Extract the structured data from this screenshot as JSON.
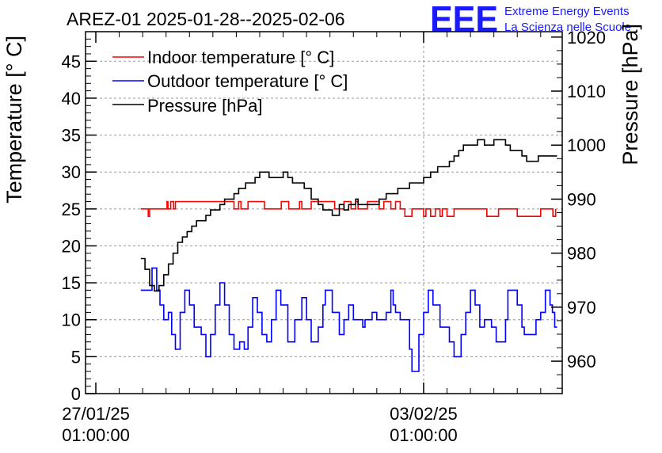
{
  "chart_data": {
    "type": "line",
    "title": "AREZ-01 2025-01-28--2025-02-06",
    "logo": {
      "mark": "EEE",
      "line1": "Extreme Energy Events",
      "line2": "La Scienza nelle Scuole",
      "color": "#1a1aff"
    },
    "ylabel": "Temperature [° C]",
    "y2label": "Pressure [hPa]",
    "ylim": [
      0,
      49
    ],
    "y2lim": [
      954,
      1021
    ],
    "yticks": [
      "0",
      "5",
      "10",
      "15",
      "20",
      "25",
      "30",
      "35",
      "40",
      "45"
    ],
    "y2ticks": [
      "960",
      "970",
      "980",
      "990",
      "1000",
      "1010",
      "1020"
    ],
    "xlim": [
      -0.22,
      9.96
    ],
    "xticks": [
      {
        "x": 0,
        "line1": "27/01/25",
        "line2": "01:00:00"
      },
      {
        "x": 7,
        "line1": "03/02/25",
        "line2": "01:00:00"
      }
    ],
    "grid": true,
    "legend_position": "top-left",
    "x_unit": "days since 27/01/25 01:00:00",
    "series": [
      {
        "name": "Indoor temperature [° C]",
        "axis": "left",
        "color": "#ff0000",
        "x": [
          0.96,
          1.05,
          1.12,
          1.15,
          1.22,
          1.46,
          1.52,
          1.54,
          1.6,
          1.66,
          1.7,
          1.8,
          2.0,
          2.5,
          2.8,
          2.95,
          3.05,
          3.1,
          3.25,
          3.38,
          3.44,
          3.6,
          3.8,
          3.96,
          4.02,
          4.12,
          4.25,
          4.35,
          4.4,
          4.6,
          4.9,
          5.1,
          5.3,
          5.45,
          5.55,
          5.6,
          5.8,
          6.05,
          6.15,
          6.3,
          6.4,
          6.5,
          6.6,
          6.75,
          7.0,
          7.05,
          7.15,
          7.25,
          7.35,
          7.4,
          7.5,
          7.65,
          7.75,
          7.85,
          8.0,
          8.15,
          8.35,
          8.5,
          8.6,
          8.8,
          9.0,
          9.3,
          9.5,
          9.7,
          9.72,
          9.76,
          9.82
        ],
        "y": [
          25,
          25,
          24,
          25,
          25,
          25,
          26,
          25,
          26,
          25,
          26,
          26,
          26,
          26,
          26,
          25,
          26,
          25,
          26,
          26,
          26,
          25,
          25,
          26,
          26,
          25,
          25,
          26,
          25,
          26,
          26,
          25,
          26,
          25,
          26,
          25,
          26,
          25,
          26,
          25,
          26,
          25,
          24,
          25,
          24,
          25,
          24,
          25,
          24,
          25,
          24,
          25,
          25,
          25,
          25,
          25,
          24,
          24,
          25,
          25,
          24,
          24,
          25,
          25,
          25,
          24,
          25
        ],
        "values": [
          25,
          25,
          24,
          25,
          25,
          25,
          26,
          25,
          26,
          25,
          26,
          26,
          26,
          26,
          26,
          25,
          26,
          25,
          26,
          26,
          26,
          25,
          25,
          26,
          26,
          25,
          25,
          26,
          25,
          26,
          26,
          25,
          26,
          25,
          26,
          25,
          26,
          25,
          26,
          25,
          26,
          25,
          24,
          25,
          24,
          25,
          24,
          25,
          24,
          25,
          24,
          25,
          25,
          25,
          25,
          25,
          24,
          24,
          25,
          25,
          24,
          24,
          25,
          25,
          25,
          24,
          25
        ]
      },
      {
        "name": "Outdoor temperature [° C]",
        "axis": "left",
        "color": "#0000ff",
        "x": [
          0.96,
          1.1,
          1.2,
          1.3,
          1.37,
          1.45,
          1.55,
          1.62,
          1.7,
          1.8,
          1.9,
          2.0,
          2.1,
          2.25,
          2.35,
          2.45,
          2.55,
          2.65,
          2.75,
          2.85,
          2.95,
          3.07,
          3.17,
          3.25,
          3.35,
          3.45,
          3.55,
          3.65,
          3.75,
          3.85,
          3.95,
          4.1,
          4.25,
          4.4,
          4.5,
          4.6,
          4.75,
          4.85,
          4.9,
          5.05,
          5.2,
          5.3,
          5.4,
          5.5,
          5.6,
          5.7,
          5.75,
          5.9,
          6.0,
          6.1,
          6.2,
          6.3,
          6.35,
          6.4,
          6.5,
          6.6,
          6.7,
          6.75,
          6.9,
          7.0,
          7.1,
          7.2,
          7.35,
          7.45,
          7.55,
          7.65,
          7.8,
          7.9,
          8.0,
          8.1,
          8.2,
          8.3,
          8.45,
          8.55,
          8.65,
          8.75,
          8.8,
          9.0,
          9.1,
          9.15,
          9.2,
          9.3,
          9.4,
          9.5,
          9.6,
          9.7,
          9.75,
          9.8,
          9.85
        ],
        "y": [
          14,
          14,
          17,
          14,
          12,
          10,
          11,
          8,
          6,
          11,
          14,
          12,
          9,
          8,
          5,
          8,
          12,
          15,
          12,
          8,
          6,
          7,
          6,
          9,
          13,
          11,
          8,
          7,
          10,
          14,
          12,
          7,
          10,
          13,
          10,
          7,
          9,
          12,
          14,
          11,
          8,
          10,
          12,
          10,
          10,
          9,
          10,
          11,
          10,
          10,
          11,
          14,
          12,
          11,
          10,
          10,
          6,
          3,
          8,
          11,
          14,
          12,
          9,
          9,
          7,
          5,
          8,
          11,
          14,
          12,
          9,
          10,
          9,
          7,
          7,
          10,
          14,
          12,
          9,
          8,
          8,
          8,
          10,
          11,
          14,
          12,
          11,
          9,
          9
        ],
        "values": [
          14,
          14,
          17,
          14,
          12,
          10,
          11,
          8,
          6,
          11,
          14,
          12,
          9,
          8,
          5,
          8,
          12,
          15,
          12,
          8,
          6,
          7,
          6,
          9,
          13,
          11,
          8,
          7,
          10,
          14,
          12,
          7,
          10,
          13,
          10,
          7,
          9,
          12,
          14,
          11,
          8,
          10,
          12,
          10,
          10,
          9,
          10,
          11,
          10,
          10,
          11,
          14,
          12,
          11,
          10,
          10,
          6,
          3,
          8,
          11,
          14,
          12,
          9,
          9,
          7,
          5,
          8,
          11,
          14,
          12,
          9,
          10,
          9,
          7,
          7,
          10,
          14,
          12,
          9,
          8,
          8,
          8,
          10,
          11,
          14,
          12,
          11,
          9,
          9
        ]
      },
      {
        "name": "Pressure [hPa]",
        "axis": "right",
        "color": "#000000",
        "x": [
          0.96,
          1.05,
          1.15,
          1.25,
          1.35,
          1.45,
          1.55,
          1.65,
          1.75,
          1.85,
          1.95,
          2.05,
          2.15,
          2.25,
          2.35,
          2.45,
          2.55,
          2.65,
          2.75,
          2.85,
          2.95,
          3.05,
          3.2,
          3.4,
          3.5,
          3.6,
          3.7,
          3.85,
          4.0,
          4.1,
          4.2,
          4.3,
          4.45,
          4.6,
          4.75,
          4.85,
          4.95,
          5.05,
          5.15,
          5.2,
          5.3,
          5.4,
          5.5,
          5.55,
          5.6,
          5.75,
          5.9,
          6.05,
          6.2,
          6.35,
          6.45,
          6.55,
          6.7,
          6.85,
          7.0,
          7.15,
          7.3,
          7.4,
          7.55,
          7.65,
          7.75,
          7.85,
          7.95,
          8.05,
          8.15,
          8.3,
          8.4,
          8.5,
          8.6,
          8.75,
          8.85,
          9.0,
          9.1,
          9.2,
          9.3,
          9.45,
          9.55,
          9.6,
          9.65,
          9.75,
          9.85
        ],
        "y": [
          979,
          977,
          974,
          973,
          974,
          976,
          978,
          980,
          982,
          983,
          984,
          985,
          986,
          986,
          987,
          988,
          988,
          989,
          990,
          990,
          991,
          992,
          993,
          994,
          995,
          995,
          994,
          994,
          995,
          994,
          993,
          993,
          992,
          990,
          989,
          988,
          988,
          987,
          987,
          989,
          988,
          989,
          989,
          990,
          989,
          989,
          989,
          990,
          991,
          991,
          992,
          992,
          993,
          993,
          994,
          995,
          996,
          996,
          997,
          998,
          999,
          1000,
          1000,
          1000,
          1001,
          1000,
          1000,
          1001,
          1001,
          1000,
          999,
          999,
          998,
          997,
          997,
          998,
          998,
          998,
          998,
          998,
          998
        ],
        "values": [
          979,
          977,
          974,
          973,
          974,
          976,
          978,
          980,
          982,
          983,
          984,
          985,
          986,
          986,
          987,
          988,
          988,
          989,
          990,
          990,
          991,
          992,
          993,
          994,
          995,
          995,
          994,
          994,
          995,
          994,
          993,
          993,
          992,
          990,
          989,
          988,
          988,
          987,
          987,
          989,
          988,
          989,
          989,
          990,
          989,
          989,
          989,
          990,
          991,
          991,
          992,
          992,
          993,
          993,
          994,
          995,
          996,
          996,
          997,
          998,
          999,
          1000,
          1000,
          1000,
          1001,
          1000,
          1000,
          1001,
          1001,
          1000,
          999,
          999,
          998,
          997,
          997,
          998,
          998,
          998,
          998,
          998,
          998
        ]
      }
    ]
  }
}
